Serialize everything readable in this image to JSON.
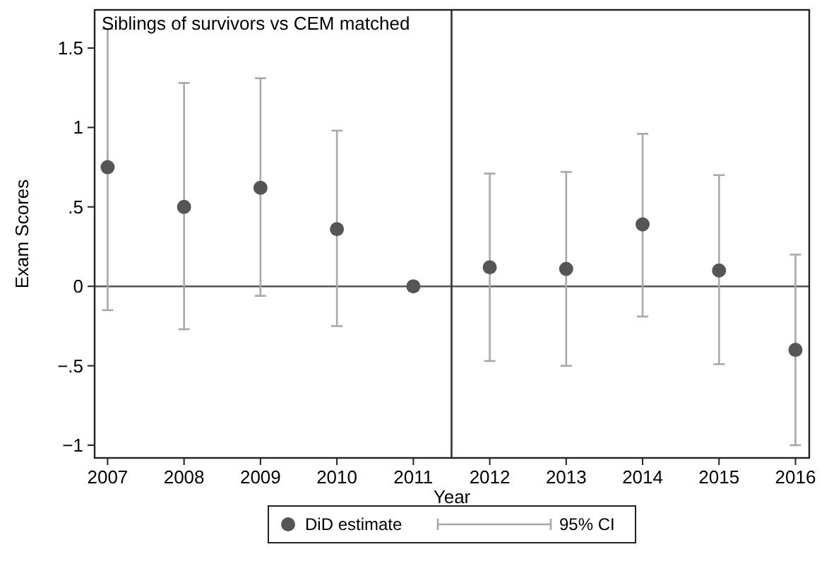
{
  "chart_data": {
    "type": "scatter",
    "title": "Siblings of survivors vs CEM matched",
    "xlabel": "Year",
    "ylabel": "Exam Scores",
    "x": [
      2007,
      2008,
      2009,
      2010,
      2011,
      2012,
      2013,
      2014,
      2015,
      2016
    ],
    "series": [
      {
        "name": "DiD estimate",
        "color": "#555555",
        "values": [
          0.75,
          0.5,
          0.62,
          0.36,
          0,
          0.12,
          0.11,
          0.39,
          0.1,
          -0.4
        ],
        "errors": [
          [
            -0.15,
            1.62
          ],
          [
            -0.27,
            1.28
          ],
          [
            -0.06,
            1.31
          ],
          [
            -0.25,
            0.98
          ],
          null,
          [
            -0.47,
            0.71
          ],
          [
            -0.5,
            0.72
          ],
          [
            -0.19,
            0.96
          ],
          [
            -0.49,
            0.7
          ],
          [
            -1.0,
            0.2
          ]
        ]
      }
    ],
    "annotations": [
      "95% CI"
    ],
    "xlim": [
      2006.83,
      2016.18
    ],
    "xticks": [
      2007,
      2008,
      2009,
      2010,
      2011,
      2012,
      2013,
      2014,
      2015,
      2016
    ],
    "ylim": [
      -1.08,
      1.74
    ],
    "yticks": [
      {
        "value": -1,
        "label": "−1"
      },
      {
        "value": -0.5,
        "label": "−.5"
      },
      0,
      {
        "value": 0.5,
        "label": ".5"
      },
      1,
      1.5
    ],
    "ref_lines": [
      {
        "axis": "y",
        "value": 0,
        "color": "#555555"
      },
      {
        "axis": "x",
        "value": 2011.5,
        "color": "#333333"
      }
    ],
    "grid": false,
    "legend": "bottom",
    "marker": "circle"
  }
}
